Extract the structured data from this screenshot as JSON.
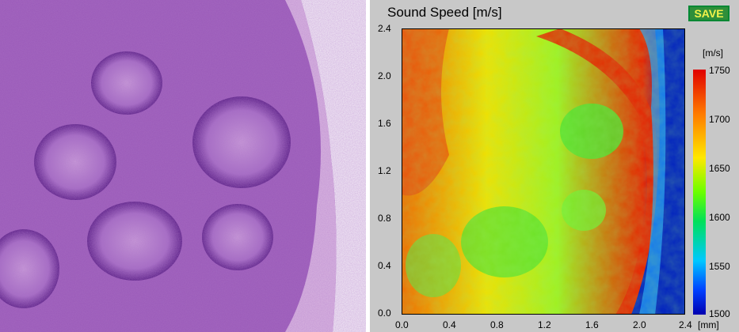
{
  "panel": {
    "title": "Sound Speed [m/s]",
    "save_label": "SAVE",
    "colorbar_unit": "[m/s]",
    "x_unit": "[mm]",
    "colorbar_ticks": [
      "1750",
      "1700",
      "1650",
      "1600",
      "1550",
      "1500"
    ],
    "y_ticks": [
      "2.4",
      "2.0",
      "1.6",
      "1.2",
      "0.8",
      "0.4",
      "0.0"
    ],
    "x_ticks": [
      "0.0",
      "0.4",
      "0.8",
      "1.2",
      "1.6",
      "2.0",
      "2.4"
    ]
  },
  "colors": {
    "histo_bg": "#d8a8dc",
    "histo_dark": "#6a2a90",
    "map_red": "#e82000",
    "map_yellow": "#f0e000",
    "map_green": "#50e030",
    "map_blue": "#0020c0",
    "save_bg": "#2f8f3a",
    "save_text": "#f2f24a"
  },
  "icons": {
    "histology": "tissue-image",
    "map": "heatmap-image"
  }
}
